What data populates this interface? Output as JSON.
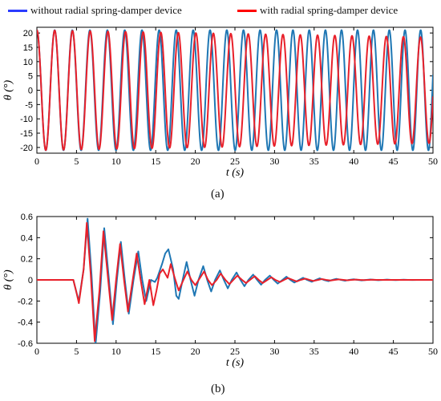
{
  "legend": {
    "items": [
      {
        "label": "without radial spring-damper device",
        "color": "#1f77b4",
        "swatch": "#2b3cff"
      },
      {
        "label": "with radial spring-damper device",
        "color": "#e8202a",
        "swatch": "#ff0000"
      }
    ]
  },
  "panel_labels": {
    "a": "(a)",
    "b": "(b)"
  },
  "chart_data": [
    {
      "type": "line",
      "panel": "(a)",
      "xlabel": "t (s)",
      "ylabel": "θ (°)",
      "xlim": [
        0,
        50
      ],
      "ylim": [
        -22,
        22
      ],
      "xticks": [
        0,
        5,
        10,
        15,
        20,
        25,
        30,
        35,
        40,
        45,
        50
      ],
      "yticks": [
        20,
        15,
        10,
        5,
        0,
        -5,
        -10,
        -15,
        -20
      ],
      "grid": false,
      "series": [
        {
          "name": "without radial spring-damper device",
          "color": "#1f77b4",
          "model": "sinusoid",
          "amplitude_start": 21,
          "amplitude_end": 21,
          "period_start": 2.25,
          "period_end": 1.96,
          "phase_start_deg": 90
        },
        {
          "name": "with radial spring-damper device",
          "color": "#e8202a",
          "model": "sinusoid",
          "amplitude_start": 21,
          "amplitude_end": 18.5,
          "period_start": 2.25,
          "period_end": 2.15,
          "phase_start_deg": 90
        }
      ]
    },
    {
      "type": "line",
      "panel": "(b)",
      "xlabel": "t (s)",
      "ylabel": "θ (°)",
      "xlim": [
        0,
        50
      ],
      "ylim": [
        -0.6,
        0.6
      ],
      "xticks": [
        0,
        5,
        10,
        15,
        20,
        25,
        30,
        35,
        40,
        45,
        50
      ],
      "yticks": [
        0.6,
        0.4,
        0.2,
        0,
        -0.2,
        -0.4,
        -0.6
      ],
      "grid": false,
      "series": [
        {
          "name": "without radial spring-damper device",
          "color": "#1f77b4",
          "points": [
            [
              0,
              0
            ],
            [
              4.6,
              0
            ],
            [
              5.0,
              -0.12
            ],
            [
              5.3,
              -0.2
            ],
            [
              5.9,
              0.1
            ],
            [
              6.4,
              0.58
            ],
            [
              6.9,
              0.05
            ],
            [
              7.4,
              -0.62
            ],
            [
              8.0,
              -0.1
            ],
            [
              8.5,
              0.49
            ],
            [
              9.1,
              0
            ],
            [
              9.6,
              -0.42
            ],
            [
              10.1,
              0
            ],
            [
              10.6,
              0.36
            ],
            [
              11.1,
              0
            ],
            [
              11.6,
              -0.32
            ],
            [
              12.2,
              0
            ],
            [
              12.8,
              0.27
            ],
            [
              13.3,
              0
            ],
            [
              13.8,
              -0.2
            ],
            [
              14.4,
              0
            ],
            [
              14.9,
              -0.02
            ],
            [
              15.2,
              0.02
            ],
            [
              15.8,
              0.15
            ],
            [
              16.2,
              0.25
            ],
            [
              16.6,
              0.29
            ],
            [
              17.2,
              0.1
            ],
            [
              17.6,
              -0.15
            ],
            [
              17.9,
              -0.18
            ],
            [
              18.4,
              0
            ],
            [
              18.9,
              0.17
            ],
            [
              19.4,
              0
            ],
            [
              19.9,
              -0.15
            ],
            [
              20.4,
              0
            ],
            [
              21.0,
              0.13
            ],
            [
              21.5,
              0
            ],
            [
              22.0,
              -0.11
            ],
            [
              22.5,
              0
            ],
            [
              23.1,
              0.09
            ],
            [
              23.6,
              0
            ],
            [
              24.1,
              -0.08
            ],
            [
              24.6,
              0
            ],
            [
              25.2,
              0.07
            ],
            [
              25.7,
              0
            ],
            [
              26.2,
              -0.06
            ],
            [
              26.7,
              0
            ],
            [
              27.3,
              0.05
            ],
            [
              27.8,
              0
            ],
            [
              28.3,
              -0.045
            ],
            [
              28.8,
              0
            ],
            [
              29.4,
              0.04
            ],
            [
              29.9,
              0
            ],
            [
              30.4,
              -0.035
            ],
            [
              31.0,
              0
            ],
            [
              31.5,
              0.03
            ],
            [
              32.0,
              0
            ],
            [
              32.5,
              -0.025
            ],
            [
              33.1,
              0
            ],
            [
              33.6,
              0.02
            ],
            [
              34.1,
              0
            ],
            [
              34.7,
              -0.018
            ],
            [
              35.2,
              0
            ],
            [
              35.7,
              0.015
            ],
            [
              36.2,
              0
            ],
            [
              36.8,
              -0.012
            ],
            [
              37.3,
              0
            ],
            [
              37.8,
              0.01
            ],
            [
              38.4,
              0
            ],
            [
              38.9,
              -0.008
            ],
            [
              39.4,
              0
            ],
            [
              40.0,
              0.006
            ],
            [
              40.5,
              0
            ],
            [
              41.0,
              -0.005
            ],
            [
              41.6,
              0
            ],
            [
              42.1,
              0.004
            ],
            [
              42.6,
              0
            ],
            [
              43.1,
              -0.003
            ],
            [
              43.7,
              0
            ],
            [
              44.2,
              0.003
            ],
            [
              44.7,
              0
            ],
            [
              45.3,
              -0.002
            ],
            [
              45.8,
              0
            ],
            [
              46.3,
              0.002
            ],
            [
              46.9,
              0
            ],
            [
              47.4,
              -0.001
            ],
            [
              48.0,
              0
            ],
            [
              50,
              0
            ]
          ]
        },
        {
          "name": "with radial spring-damper device",
          "color": "#e8202a",
          "points": [
            [
              0,
              0
            ],
            [
              4.6,
              0
            ],
            [
              5.0,
              -0.12
            ],
            [
              5.3,
              -0.22
            ],
            [
              5.9,
              0.1
            ],
            [
              6.3,
              0.54
            ],
            [
              6.8,
              0.05
            ],
            [
              7.3,
              -0.58
            ],
            [
              7.9,
              -0.1
            ],
            [
              8.4,
              0.46
            ],
            [
              9.0,
              0
            ],
            [
              9.5,
              -0.38
            ],
            [
              10.0,
              0
            ],
            [
              10.5,
              0.34
            ],
            [
              11.0,
              0
            ],
            [
              11.5,
              -0.3
            ],
            [
              12.1,
              0
            ],
            [
              12.6,
              0.25
            ],
            [
              13.1,
              0
            ],
            [
              13.6,
              -0.23
            ],
            [
              14.2,
              0
            ],
            [
              14.7,
              -0.24
            ],
            [
              15.1,
              -0.1
            ],
            [
              15.5,
              0.06
            ],
            [
              15.9,
              0.1
            ],
            [
              16.5,
              0.02
            ],
            [
              16.9,
              0.15
            ],
            [
              17.4,
              0.02
            ],
            [
              17.9,
              -0.1
            ],
            [
              18.5,
              0.0
            ],
            [
              19.0,
              0.08
            ],
            [
              19.5,
              0
            ],
            [
              20.0,
              -0.05
            ],
            [
              20.6,
              0.02
            ],
            [
              21.1,
              0.08
            ],
            [
              21.6,
              0
            ],
            [
              22.1,
              -0.05
            ],
            [
              22.7,
              0
            ],
            [
              23.2,
              0.06
            ],
            [
              23.8,
              0
            ],
            [
              24.3,
              -0.04
            ],
            [
              24.8,
              0
            ],
            [
              25.3,
              0.04
            ],
            [
              25.9,
              0
            ],
            [
              26.4,
              -0.03
            ],
            [
              26.9,
              0
            ],
            [
              27.5,
              0.035
            ],
            [
              28.0,
              0
            ],
            [
              28.5,
              -0.03
            ],
            [
              29.1,
              0
            ],
            [
              29.6,
              0.025
            ],
            [
              30.1,
              0
            ],
            [
              30.7,
              -0.02
            ],
            [
              31.2,
              0
            ],
            [
              31.7,
              0.018
            ],
            [
              32.3,
              0
            ],
            [
              32.8,
              -0.015
            ],
            [
              33.3,
              0
            ],
            [
              33.9,
              0.012
            ],
            [
              34.4,
              0
            ],
            [
              34.9,
              -0.01
            ],
            [
              35.5,
              0
            ],
            [
              36.0,
              0.008
            ],
            [
              36.5,
              0
            ],
            [
              37.1,
              -0.006
            ],
            [
              37.6,
              0
            ],
            [
              38.1,
              0.005
            ],
            [
              38.7,
              0
            ],
            [
              39.2,
              -0.004
            ],
            [
              39.7,
              0
            ],
            [
              40.3,
              0.003
            ],
            [
              40.8,
              0
            ],
            [
              41.3,
              -0.002
            ],
            [
              41.9,
              0
            ],
            [
              42.4,
              0.002
            ],
            [
              42.9,
              0
            ],
            [
              50,
              0
            ]
          ]
        }
      ]
    }
  ]
}
